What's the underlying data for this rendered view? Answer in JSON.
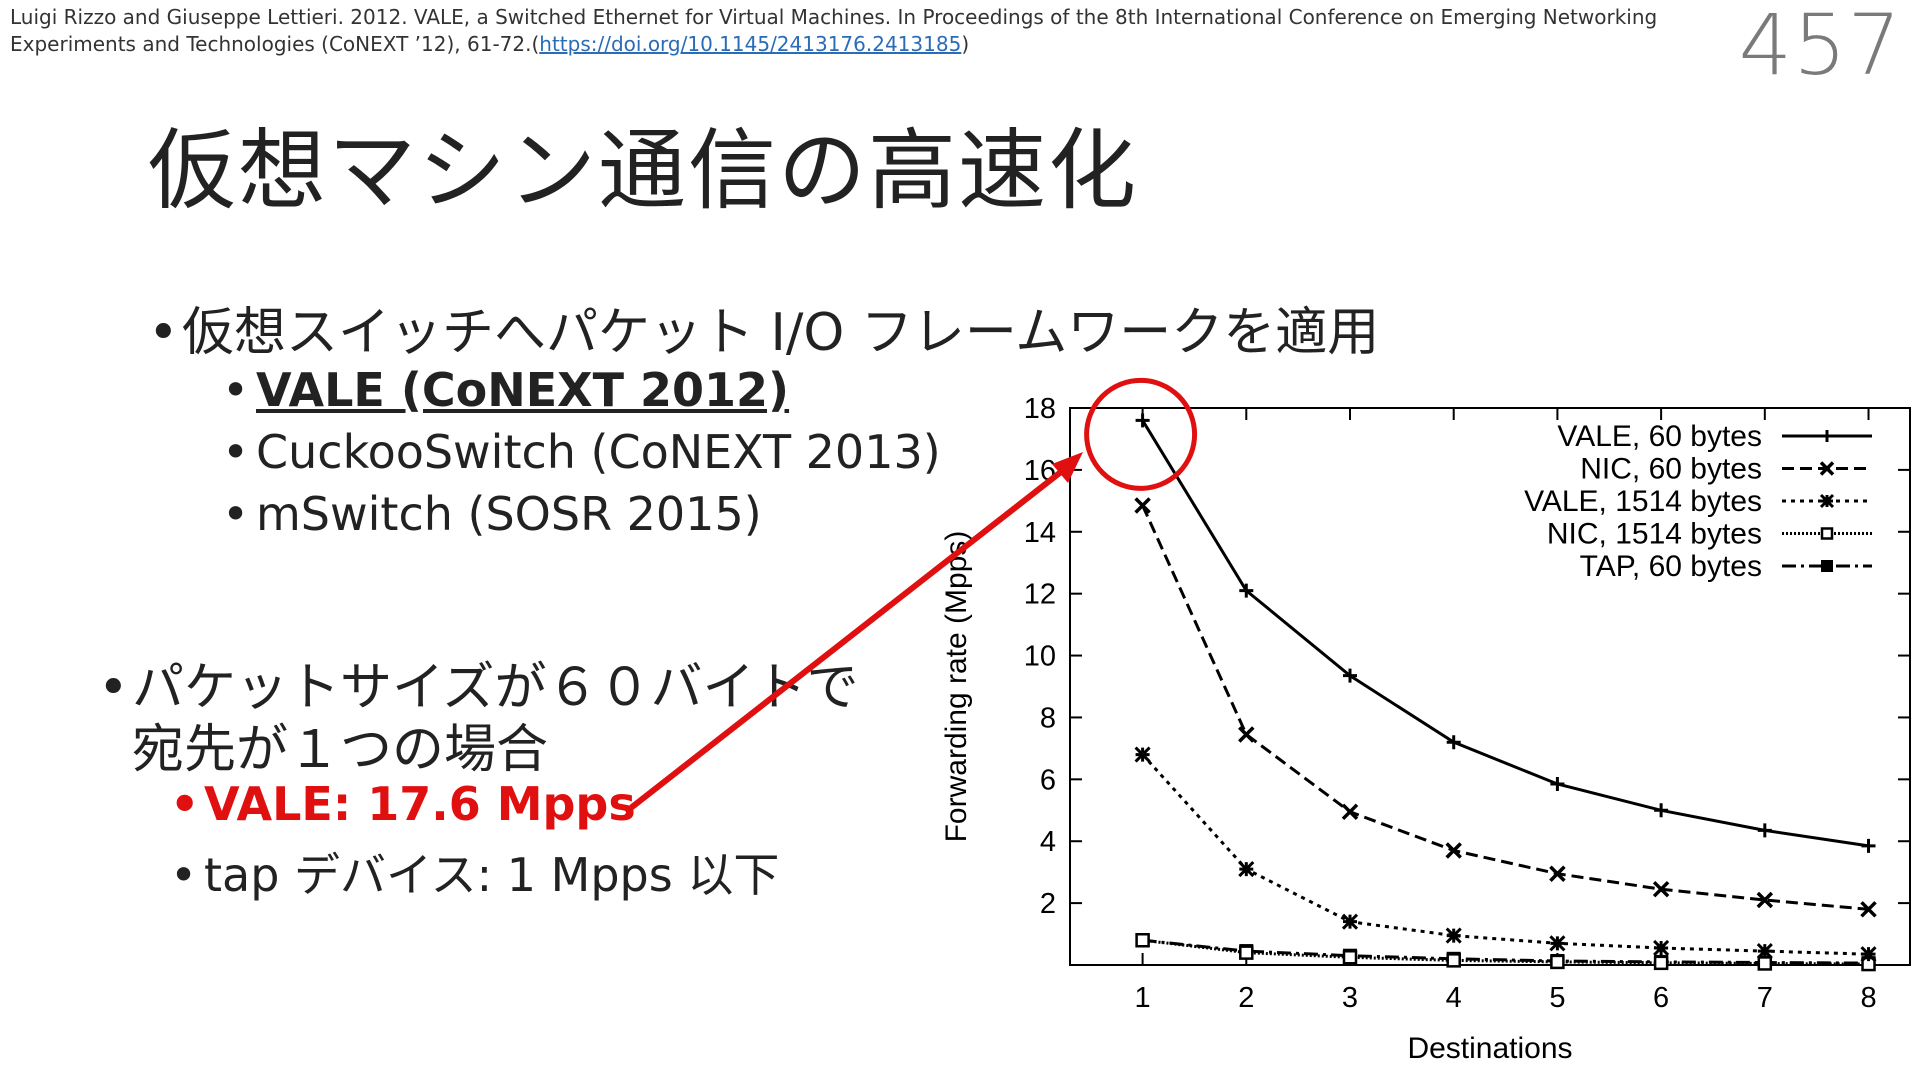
{
  "citation": {
    "text": "Luigi Rizzo and Giuseppe Lettieri. 2012. VALE, a Switched Ethernet for Virtual Machines. In Proceedings of the 8th International Conference on Emerging Networking Experiments and Technologies (CoNEXT ’12), 61-72.(",
    "link": "https://doi.org/10.1145/2413176.2413185",
    "suffix": ")"
  },
  "page_number": "457",
  "title": "仮想マシン通信の高速化",
  "bullets": {
    "main1": "仮想スイッチへパケット I/O フレームワークを適用",
    "sub1": "VALE (CoNEXT 2012)",
    "sub2": "CuckooSwitch (CoNEXT 2013)",
    "sub3": "mSwitch (SOSR 2015)",
    "main2_line1": "パケットサイズが６０バイトで",
    "main2_line2": "宛先が１つの場合",
    "sub4": "VALE: 17.6 Mpps",
    "sub5": "tap デバイス: 1 Mpps 以下",
    "dot": "•"
  },
  "colors": {
    "highlight": "#e01010",
    "axis": "#000000"
  },
  "chart_data": {
    "type": "line",
    "xlabel": "Destinations",
    "ylabel": "Forwarding rate (Mpps)",
    "xlim": [
      0.3,
      8.4
    ],
    "ylim": [
      0,
      18
    ],
    "x": [
      1,
      2,
      3,
      4,
      5,
      6,
      7,
      8
    ],
    "xticks": [
      1,
      2,
      3,
      4,
      5,
      6,
      7,
      8
    ],
    "yticks": [
      2,
      4,
      6,
      8,
      10,
      12,
      14,
      16,
      18
    ],
    "legend_position": "top-right",
    "series": [
      {
        "name": "VALE, 60 bytes",
        "values": [
          17.6,
          12.1,
          9.35,
          7.2,
          5.85,
          5.0,
          4.35,
          3.85
        ],
        "marker": "plus",
        "dash": ""
      },
      {
        "name": "NIC, 60 bytes",
        "values": [
          14.85,
          7.45,
          4.95,
          3.7,
          2.95,
          2.45,
          2.1,
          1.8
        ],
        "marker": "x",
        "dash": "12,6"
      },
      {
        "name": "VALE, 1514 bytes",
        "values": [
          6.8,
          3.1,
          1.4,
          0.95,
          0.7,
          0.55,
          0.45,
          0.35
        ],
        "marker": "star",
        "dash": "4,5"
      },
      {
        "name": "NIC, 1514 bytes",
        "values": [
          0.8,
          0.4,
          0.25,
          0.15,
          0.1,
          0.07,
          0.05,
          0.03
        ],
        "marker": "square",
        "dash": "2,2"
      },
      {
        "name": "TAP, 60 bytes",
        "values": [
          0.8,
          0.45,
          0.3,
          0.2,
          0.13,
          0.1,
          0.08,
          0.06
        ],
        "marker": "filled-square",
        "dash": "14,5,3,5"
      }
    ]
  },
  "annotation": {
    "highlighted_point": {
      "series": "VALE, 60 bytes",
      "x": 1,
      "y": 17.6
    }
  }
}
